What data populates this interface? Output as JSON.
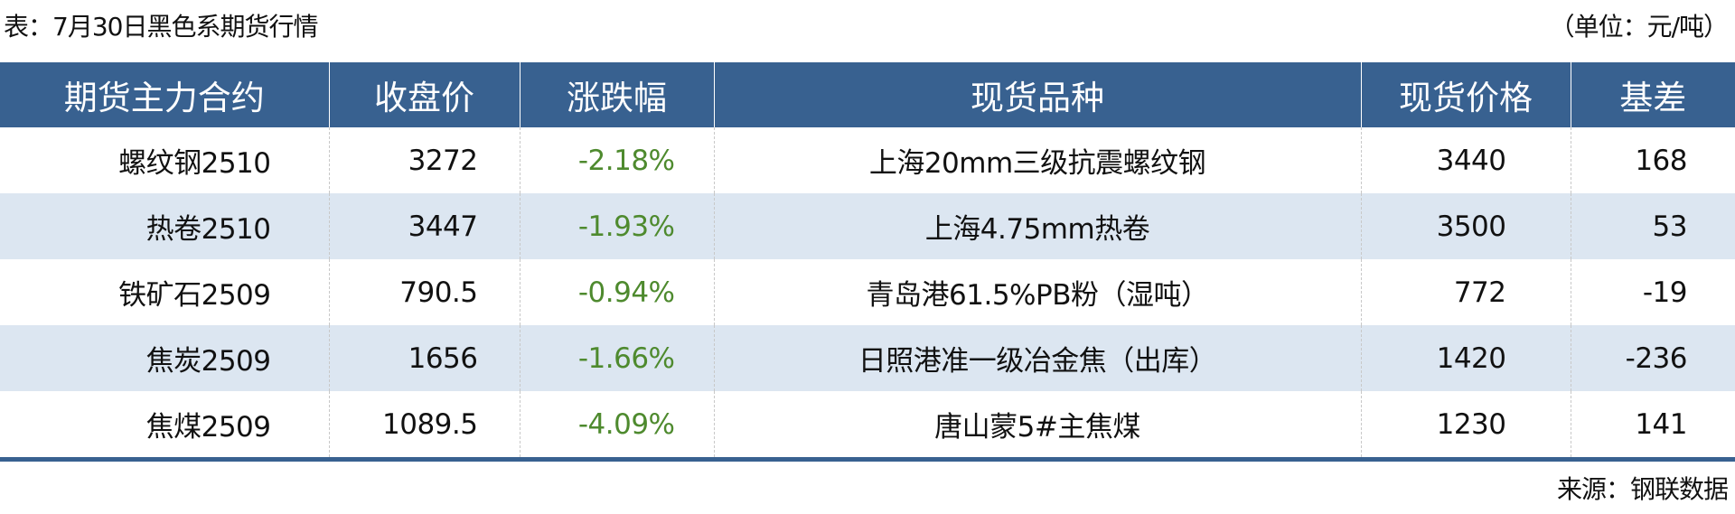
{
  "title": "表：7月30日黑色系期货行情",
  "unit": "（单位：元/吨）",
  "colors": {
    "header_bg": "#386190",
    "alt_row_bg": "#dce6f1",
    "change_text": "#4e8a2e"
  },
  "table": {
    "headers": [
      "期货主力合约",
      "收盘价",
      "涨跌幅",
      "现货品种",
      "现货价格",
      "基差"
    ],
    "rows": [
      {
        "contract": "螺纹钢2510",
        "close": "3272",
        "change": "-2.18%",
        "spot": "上海20mm三级抗震螺纹钢",
        "spot_price": "3440",
        "basis": "168"
      },
      {
        "contract": "热卷2510",
        "close": "3447",
        "change": "-1.93%",
        "spot": "上海4.75mm热卷",
        "spot_price": "3500",
        "basis": "53"
      },
      {
        "contract": "铁矿石2509",
        "close": "790.5",
        "change": "-0.94%",
        "spot": "青岛港61.5%PB粉（湿吨）",
        "spot_price": "772",
        "basis": "-19"
      },
      {
        "contract": "焦炭2509",
        "close": "1656",
        "change": "-1.66%",
        "spot": "日照港准一级冶金焦（出库）",
        "spot_price": "1420",
        "basis": "-236"
      },
      {
        "contract": "焦煤2509",
        "close": "1089.5",
        "change": "-4.09%",
        "spot": "唐山蒙5#主焦煤",
        "spot_price": "1230",
        "basis": "141"
      }
    ]
  },
  "source": "来源：钢联数据"
}
